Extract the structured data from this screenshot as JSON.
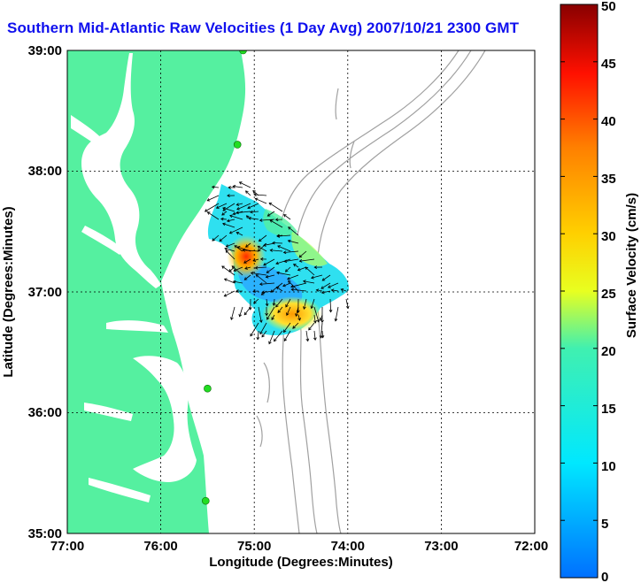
{
  "title": "Southern Mid-Atlantic Raw Velocities (1 Day Avg) 2007/10/21 2300 GMT",
  "map": {
    "x_label": "Longitude (Degrees:Minutes)",
    "y_label": "Latitude (Degrees:Minutes)",
    "x_ticks": [
      "77:00",
      "76:00",
      "75:00",
      "74:00",
      "73:00",
      "72:00"
    ],
    "y_ticks": [
      "39:00",
      "38:00",
      "37:00",
      "36:00",
      "35:00"
    ],
    "lon_range": [
      -77,
      -72
    ],
    "lat_range": [
      35,
      39
    ],
    "grid": true,
    "land_color": "#55f0a0",
    "water_color": "#ffffff",
    "bathymetry_color": "#a0a0a0",
    "station_color": "#22dd22"
  },
  "colorbar": {
    "label": "Surface Velocity (cm/s)",
    "ticks": [
      "0",
      "5",
      "10",
      "15",
      "20",
      "25",
      "30",
      "35",
      "40",
      "45",
      "50"
    ],
    "range": [
      0,
      50
    ]
  },
  "stations": [
    {
      "lon": -75.12,
      "lat": 39.0
    },
    {
      "lon": -75.18,
      "lat": 38.22
    },
    {
      "lon": -75.5,
      "lat": 36.2
    },
    {
      "lon": -75.52,
      "lat": 35.27
    }
  ]
}
